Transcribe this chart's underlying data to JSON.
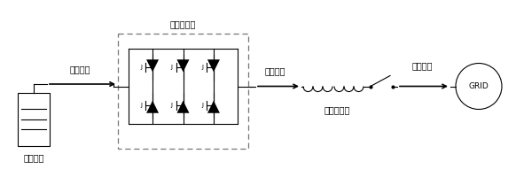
{
  "bg_color": "#ffffff",
  "line_color": "#000000",
  "labels": {
    "dc_power": "直流电能",
    "ac_power1": "交流电能",
    "ac_power2": "交流电能",
    "inverter": "双向逆变器",
    "transformer": "隔离变压器",
    "storage": "储能设备",
    "grid": "GRID"
  },
  "figsize": [
    5.82,
    2.0
  ],
  "dpi": 100
}
